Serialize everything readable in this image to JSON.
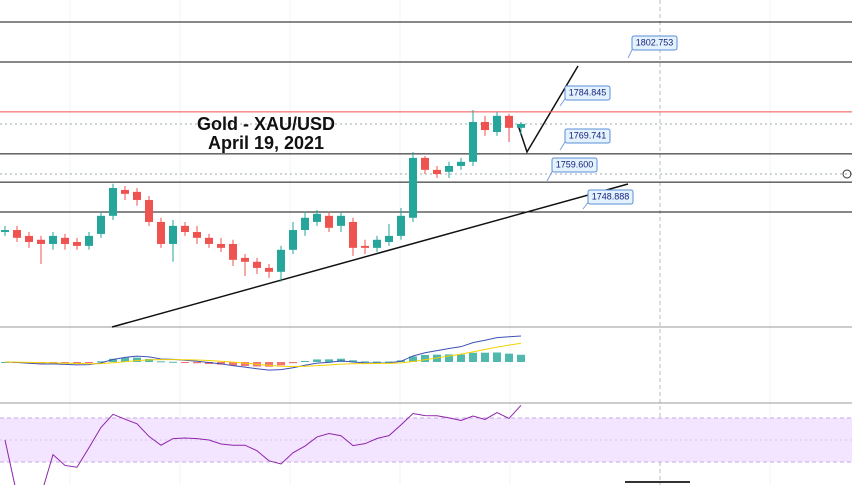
{
  "chart_data": {
    "type": "candlestick",
    "title": "Gold - XAU/USD",
    "subtitle": "April 19, 2021",
    "open": [
      1741.7,
      1742.4,
      1740.3,
      1738.9,
      1737.4,
      1739.6,
      1738.1,
      1736.7,
      1741.0,
      1747.5,
      1756.8,
      1756.1,
      1753.2,
      1745.3,
      1737.4,
      1743.9,
      1741.7,
      1739.6,
      1737.4,
      1737.4,
      1732.4,
      1731.0,
      1728.8,
      1727.4,
      1735.3,
      1742.4,
      1745.3,
      1747.5,
      1743.9,
      1745.3,
      1736.7,
      1736.0,
      1738.1,
      1740.3,
      1746.8,
      1768.3,
      1764.0,
      1763.3,
      1765.4,
      1766.9,
      1781.2,
      1777.6,
      1783.4,
      1779.1
    ],
    "high": [
      1743.9,
      1743.9,
      1741.7,
      1740.3,
      1741.7,
      1741.0,
      1739.6,
      1741.7,
      1748.9,
      1759.0,
      1758.2,
      1757.5,
      1754.6,
      1746.8,
      1746.0,
      1745.3,
      1743.9,
      1741.0,
      1739.6,
      1738.9,
      1733.8,
      1732.4,
      1730.2,
      1736.7,
      1745.3,
      1748.9,
      1749.6,
      1748.9,
      1748.9,
      1746.8,
      1738.9,
      1740.3,
      1744.6,
      1750.3,
      1770.4,
      1769.0,
      1765.4,
      1766.9,
      1768.3,
      1785.5,
      1783.4,
      1784.8,
      1784.1,
      1781.2
    ],
    "low": [
      1740.3,
      1738.1,
      1736.0,
      1730.2,
      1735.3,
      1735.3,
      1735.3,
      1735.3,
      1739.6,
      1746.0,
      1753.2,
      1751.1,
      1743.9,
      1736.0,
      1731.0,
      1740.3,
      1737.4,
      1736.0,
      1734.5,
      1729.5,
      1725.9,
      1726.6,
      1725.2,
      1723.8,
      1733.8,
      1740.3,
      1743.9,
      1741.7,
      1741.7,
      1733.1,
      1733.8,
      1734.5,
      1736.7,
      1738.9,
      1745.3,
      1762.5,
      1761.1,
      1761.1,
      1764.0,
      1765.4,
      1776.2,
      1776.2,
      1774.0,
      1776.9
    ],
    "close": [
      1742.4,
      1739.6,
      1738.1,
      1737.4,
      1740.3,
      1737.4,
      1736.7,
      1740.3,
      1747.5,
      1757.5,
      1755.4,
      1753.2,
      1745.3,
      1737.4,
      1743.9,
      1741.7,
      1739.6,
      1737.4,
      1736.0,
      1731.7,
      1731.0,
      1728.8,
      1727.4,
      1735.3,
      1742.4,
      1746.8,
      1748.2,
      1743.2,
      1747.5,
      1736.0,
      1736.0,
      1738.9,
      1740.3,
      1747.5,
      1768.3,
      1764.0,
      1762.5,
      1765.4,
      1766.9,
      1781.2,
      1778.3,
      1783.4,
      1779.1,
      1780.5
    ],
    "up_color": "#26a69a",
    "down_color": "#ef5350",
    "ylim": [
      1708.3,
      1825.0
    ],
    "levels": [
      1802.753,
      1784.845,
      1769.741,
      {
        "value": 1759.6,
        "label": "1759.600"
      },
      1748.888
    ],
    "level_colors": [
      "#111111",
      "#ef5350",
      "#111111",
      "#111111",
      "#111111"
    ]
  }
}
